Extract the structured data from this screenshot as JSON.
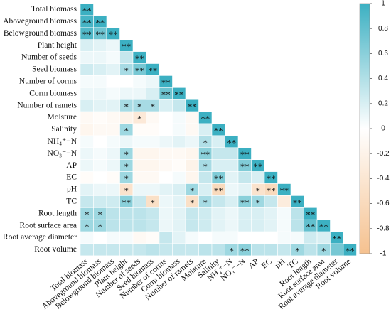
{
  "chart_data": {
    "type": "heatmap",
    "variables": [
      "Total biomass",
      "Aboveground biomass",
      "Belowground biomass",
      "Plant height",
      "Number of seeds",
      "Seed biomass",
      "Number of corms",
      "Corm biomass",
      "Number of ramets",
      "Moisture",
      "Salinity",
      "NH₄⁺−N",
      "NO₃⁻−N",
      "AP",
      "EC",
      "pH",
      "TC",
      "Root length",
      "Root surface area",
      "Root average diameter",
      "Root volume"
    ],
    "values": [
      [
        1
      ],
      [
        0.95,
        1
      ],
      [
        0.9,
        0.75,
        1
      ],
      [
        0.2,
        0.15,
        0.1,
        1
      ],
      [
        0.1,
        0.1,
        0.05,
        0.3,
        1
      ],
      [
        0.25,
        0.2,
        0.15,
        0.45,
        0.7,
        1
      ],
      [
        0.05,
        0.05,
        0,
        0,
        0.05,
        0.1,
        1
      ],
      [
        0.1,
        0.1,
        0.05,
        0.1,
        0.1,
        0.2,
        0.75,
        1
      ],
      [
        0.2,
        0.15,
        0.15,
        0.45,
        0.45,
        0.45,
        0.2,
        0.3,
        1
      ],
      [
        -0.1,
        -0.05,
        -0.1,
        -0.2,
        -0.35,
        -0.1,
        0,
        0.05,
        -0.1,
        1
      ],
      [
        -0.15,
        -0.1,
        -0.1,
        0.5,
        -0.05,
        -0.05,
        0,
        0.05,
        -0.1,
        0.2,
        1
      ],
      [
        0.05,
        0,
        0.05,
        0.1,
        0.05,
        0.05,
        0.1,
        0.15,
        0.1,
        0.4,
        0.2,
        1
      ],
      [
        0.1,
        0.05,
        0.1,
        0.5,
        -0.15,
        -0.15,
        -0.1,
        -0.1,
        -0.15,
        0.6,
        0.3,
        0.3,
        1
      ],
      [
        0.1,
        0.05,
        0.1,
        0.5,
        -0.15,
        -0.15,
        -0.1,
        -0.05,
        -0.2,
        0.45,
        0.2,
        0.2,
        0.65,
        1
      ],
      [
        -0.05,
        0,
        -0.05,
        0.5,
        -0.1,
        -0.1,
        0,
        0.05,
        -0.15,
        0.3,
        0.65,
        0.15,
        0.3,
        0.2,
        1
      ],
      [
        0.15,
        0.1,
        0.1,
        -0.45,
        0.1,
        0.1,
        0.15,
        0.2,
        0.5,
        0.2,
        -0.6,
        0.1,
        0.15,
        -0.45,
        -0.6,
        1
      ],
      [
        0.3,
        0.25,
        0.25,
        0.6,
        0.3,
        -0.5,
        0.1,
        0.15,
        -0.5,
        0.45,
        0.3,
        0.2,
        0.6,
        0.5,
        0.3,
        -0.3,
        1
      ],
      [
        0.5,
        0.5,
        0.35,
        0.35,
        0.35,
        0.3,
        0.1,
        0.15,
        0.3,
        0.25,
        0.15,
        0.1,
        0.2,
        0.2,
        0.15,
        0.05,
        0.35,
        1
      ],
      [
        0.5,
        0.5,
        0.35,
        0.35,
        0.35,
        0.3,
        0.1,
        0.15,
        0.3,
        0.25,
        0.15,
        0.1,
        0.2,
        0.2,
        0.15,
        0.05,
        0.35,
        0.8,
        1
      ],
      [
        0.05,
        0,
        0.05,
        0.05,
        -0.1,
        -0.05,
        0.3,
        0.15,
        0.05,
        0,
        0.05,
        0.05,
        0,
        0,
        0,
        0.05,
        0.05,
        0.25,
        0.2,
        1
      ],
      [
        0.3,
        0.3,
        0.3,
        0.3,
        0.3,
        0.35,
        0.3,
        0.3,
        0.3,
        0.35,
        0.35,
        0.5,
        0.6,
        0.35,
        0.35,
        0.3,
        0.5,
        0.35,
        0.5,
        0.7,
        1
      ]
    ],
    "significance": [
      [
        "**"
      ],
      [
        "**",
        "**"
      ],
      [
        "**",
        "**",
        "**"
      ],
      [
        null,
        null,
        null,
        "**"
      ],
      [
        null,
        null,
        null,
        null,
        "**"
      ],
      [
        null,
        null,
        null,
        "*",
        "**",
        "**"
      ],
      [
        null,
        null,
        null,
        null,
        null,
        null,
        "**"
      ],
      [
        null,
        null,
        null,
        null,
        null,
        null,
        "**",
        "**"
      ],
      [
        null,
        null,
        null,
        "*",
        "*",
        "*",
        null,
        null,
        "**"
      ],
      [
        null,
        null,
        null,
        null,
        "*",
        null,
        null,
        null,
        null,
        "**"
      ],
      [
        null,
        null,
        null,
        "*",
        null,
        null,
        null,
        null,
        null,
        null,
        "**"
      ],
      [
        null,
        null,
        null,
        null,
        null,
        null,
        null,
        null,
        null,
        "*",
        null,
        "**"
      ],
      [
        null,
        null,
        null,
        "*",
        null,
        null,
        null,
        null,
        null,
        "**",
        null,
        null,
        "**"
      ],
      [
        null,
        null,
        null,
        "*",
        null,
        null,
        null,
        null,
        null,
        "*",
        null,
        null,
        "**",
        "**"
      ],
      [
        null,
        null,
        null,
        "*",
        null,
        null,
        null,
        null,
        null,
        null,
        "**",
        null,
        null,
        null,
        "**"
      ],
      [
        null,
        null,
        null,
        "*",
        null,
        null,
        null,
        null,
        "*",
        null,
        "**",
        null,
        null,
        "*",
        "**",
        "**"
      ],
      [
        null,
        null,
        null,
        "**",
        null,
        "*",
        null,
        null,
        "*",
        "*",
        null,
        null,
        "**",
        "*",
        null,
        null,
        "**"
      ],
      [
        "*",
        "*",
        null,
        null,
        null,
        null,
        null,
        null,
        null,
        null,
        null,
        null,
        null,
        null,
        null,
        null,
        null,
        "**"
      ],
      [
        "*",
        "*",
        null,
        null,
        null,
        null,
        null,
        null,
        null,
        null,
        null,
        null,
        null,
        null,
        null,
        null,
        null,
        "**",
        "**"
      ],
      [
        null,
        null,
        null,
        null,
        null,
        null,
        null,
        null,
        null,
        null,
        null,
        null,
        null,
        null,
        null,
        null,
        null,
        null,
        null,
        "**"
      ],
      [
        null,
        null,
        null,
        null,
        null,
        null,
        null,
        null,
        null,
        null,
        null,
        "*",
        "**",
        null,
        null,
        null,
        "*",
        null,
        "*",
        null,
        "**"
      ]
    ],
    "clim": [
      -1,
      1
    ],
    "cticks": [
      1,
      0.8,
      0.6,
      0.4,
      0.2,
      0,
      -0.2,
      -0.4,
      -0.6,
      -0.8,
      -1
    ],
    "colors": {
      "negative": "#f5c18f",
      "zero": "#ffffff",
      "positive": "#3cb0c2"
    }
  }
}
